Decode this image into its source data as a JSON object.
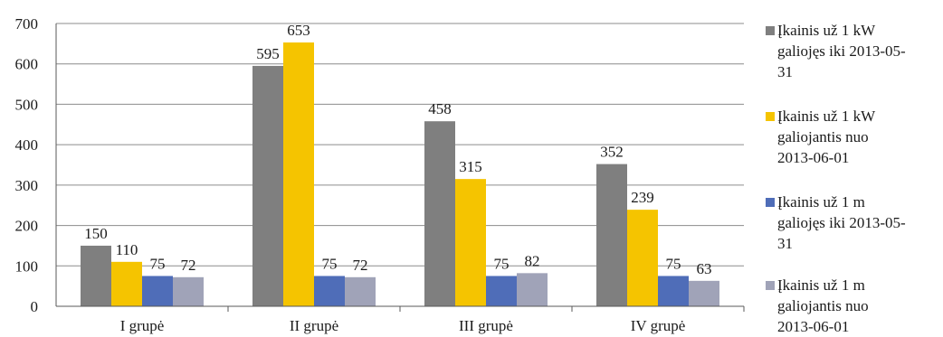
{
  "chart_data": {
    "type": "bar",
    "title": "",
    "xlabel": "",
    "ylabel": "",
    "categories": [
      "I grupė",
      "II grupė",
      "III grupė",
      "IV grupė"
    ],
    "ylim": [
      0,
      700
    ],
    "yticks": [
      0,
      100,
      200,
      300,
      400,
      500,
      600,
      700
    ],
    "grid": true,
    "legend_position": "right",
    "series": [
      {
        "name": "Įkainis už 1 kW galiojęs iki 2013-05-31",
        "legend_lines": [
          "Įkainis už 1 kW",
          "galiojęs iki 2013-05-",
          "31"
        ],
        "color": "#7f7f7f",
        "values": [
          150,
          595,
          458,
          352
        ]
      },
      {
        "name": "Įkainis už 1 kW galiojantis nuo 2013-06-01",
        "legend_lines": [
          "Įkainis už 1 kW",
          "galiojantis nuo",
          "2013-06-01"
        ],
        "color": "#f5c400",
        "values": [
          110,
          653,
          315,
          239
        ]
      },
      {
        "name": "Įkainis už 1 m galiojęs iki 2013-05-31",
        "legend_lines": [
          "Įkainis už 1 m",
          "galiojęs iki 2013-05-",
          "31"
        ],
        "color": "#4f6db8",
        "values": [
          75,
          75,
          75,
          75
        ]
      },
      {
        "name": "Įkainis už 1 m galiojantis nuo 2013-06-01",
        "legend_lines": [
          "Įkainis už 1 m",
          "galiojantis nuo",
          "2013-06-01"
        ],
        "color": "#a0a3b8",
        "values": [
          72,
          72,
          82,
          63
        ]
      }
    ]
  }
}
